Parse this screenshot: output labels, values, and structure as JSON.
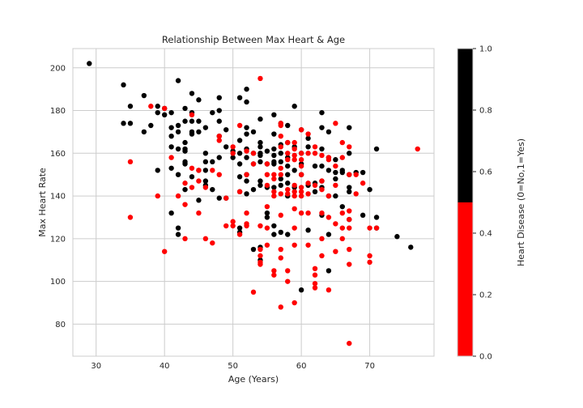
{
  "chart_data": {
    "type": "scatter",
    "title": "Relationship Between Max Heart & Age",
    "xlabel": "Age (Years)",
    "ylabel": "Max Heart Rate",
    "xlim": [
      26.6,
      79.4
    ],
    "ylim": [
      65,
      209
    ],
    "x_ticks": [
      30,
      40,
      50,
      60,
      70
    ],
    "y_ticks": [
      80,
      100,
      120,
      140,
      160,
      180,
      200
    ],
    "grid": true,
    "colorbar": {
      "label": "Heart Disease (0=No,1=Yes)",
      "ticks": [
        "0.0",
        "0.2",
        "0.4",
        "0.6",
        "0.8",
        "1.0"
      ],
      "colors": {
        "0": "#ff0000",
        "1": "#000000"
      }
    },
    "series": [
      {
        "color": "#000000",
        "points": [
          [
            29,
            202
          ],
          [
            34,
            192
          ],
          [
            34,
            174
          ],
          [
            35,
            182
          ],
          [
            35,
            174
          ],
          [
            37,
            187
          ],
          [
            37,
            170
          ],
          [
            38,
            173
          ],
          [
            39,
            182
          ],
          [
            39,
            179
          ],
          [
            39,
            152
          ],
          [
            40,
            178
          ],
          [
            40,
            181
          ],
          [
            41,
            179
          ],
          [
            41,
            172
          ],
          [
            41,
            168
          ],
          [
            41,
            163
          ],
          [
            41,
            153
          ],
          [
            41,
            132
          ],
          [
            42,
            194
          ],
          [
            42,
            173
          ],
          [
            42,
            170
          ],
          [
            42,
            162
          ],
          [
            42,
            150
          ],
          [
            42,
            125
          ],
          [
            42,
            122
          ],
          [
            43,
            181
          ],
          [
            43,
            175
          ],
          [
            43,
            165
          ],
          [
            43,
            162
          ],
          [
            43,
            161
          ],
          [
            43,
            156
          ],
          [
            43,
            155
          ],
          [
            43,
            143
          ],
          [
            44,
            188
          ],
          [
            44,
            179
          ],
          [
            44,
            175
          ],
          [
            44,
            170
          ],
          [
            44,
            169
          ],
          [
            44,
            149
          ],
          [
            45,
            185
          ],
          [
            45,
            175
          ],
          [
            45,
            170
          ],
          [
            45,
            152
          ],
          [
            45,
            138
          ],
          [
            46,
            172
          ],
          [
            46,
            160
          ],
          [
            46,
            156
          ],
          [
            46,
            152
          ],
          [
            46,
            147
          ],
          [
            46,
            145
          ],
          [
            47,
            179
          ],
          [
            47,
            156
          ],
          [
            47,
            143
          ],
          [
            48,
            186
          ],
          [
            48,
            180
          ],
          [
            48,
            175
          ],
          [
            48,
            168
          ],
          [
            48,
            158
          ],
          [
            48,
            139
          ],
          [
            49,
            163
          ],
          [
            49,
            171
          ],
          [
            49,
            139
          ],
          [
            50,
            158
          ],
          [
            50,
            161
          ],
          [
            51,
            186
          ],
          [
            51,
            166
          ],
          [
            51,
            155
          ],
          [
            51,
            149
          ],
          [
            51,
            125
          ],
          [
            51,
            123
          ],
          [
            51,
            160
          ],
          [
            51,
            142
          ],
          [
            52,
            190
          ],
          [
            52,
            184
          ],
          [
            52,
            172
          ],
          [
            52,
            169
          ],
          [
            52,
            162
          ],
          [
            52,
            158
          ],
          [
            52,
            150
          ],
          [
            52,
            147
          ],
          [
            52,
            141
          ],
          [
            53,
            170
          ],
          [
            53,
            160
          ],
          [
            53,
            155
          ],
          [
            53,
            143
          ],
          [
            53,
            115
          ],
          [
            54,
            176
          ],
          [
            54,
            165
          ],
          [
            54,
            163
          ],
          [
            54,
            160
          ],
          [
            54,
            159
          ],
          [
            54,
            156
          ],
          [
            54,
            147
          ],
          [
            54,
            145
          ],
          [
            54,
            116
          ],
          [
            54,
            110
          ],
          [
            55,
            161
          ],
          [
            55,
            155
          ],
          [
            55,
            144
          ],
          [
            55,
            132
          ],
          [
            55,
            130
          ],
          [
            56,
            178
          ],
          [
            56,
            169
          ],
          [
            56,
            162
          ],
          [
            56,
            159
          ],
          [
            56,
            156
          ],
          [
            56,
            155
          ],
          [
            56,
            144
          ],
          [
            56,
            126
          ],
          [
            56,
            122
          ],
          [
            57,
            174
          ],
          [
            57,
            164
          ],
          [
            57,
            160
          ],
          [
            57,
            156
          ],
          [
            57,
            148
          ],
          [
            57,
            145
          ],
          [
            57,
            123
          ],
          [
            58,
            173
          ],
          [
            58,
            165
          ],
          [
            58,
            158
          ],
          [
            58,
            154
          ],
          [
            58,
            150
          ],
          [
            58,
            146
          ],
          [
            58,
            140
          ],
          [
            58,
            122
          ],
          [
            59,
            182
          ],
          [
            59,
            163
          ],
          [
            59,
            152
          ],
          [
            59,
            144
          ],
          [
            60,
            171
          ],
          [
            60,
            160
          ],
          [
            60,
            155
          ],
          [
            60,
            150
          ],
          [
            60,
            96
          ],
          [
            61,
            167
          ],
          [
            61,
            163
          ],
          [
            61,
            145
          ],
          [
            61,
            124
          ],
          [
            62,
            154
          ],
          [
            62,
            146
          ],
          [
            62,
            142
          ],
          [
            63,
            179
          ],
          [
            63,
            172
          ],
          [
            63,
            162
          ],
          [
            63,
            154
          ],
          [
            63,
            147
          ],
          [
            63,
            144
          ],
          [
            63,
            131
          ],
          [
            64,
            170
          ],
          [
            64,
            158
          ],
          [
            64,
            152
          ],
          [
            64,
            140
          ],
          [
            64,
            122
          ],
          [
            64,
            105
          ],
          [
            65,
            157
          ],
          [
            65,
            151
          ],
          [
            65,
            148
          ],
          [
            65,
            140
          ],
          [
            66,
            152
          ],
          [
            66,
            151
          ],
          [
            66,
            135
          ],
          [
            67,
            172
          ],
          [
            67,
            160
          ],
          [
            67,
            150
          ],
          [
            67,
            144
          ],
          [
            67,
            142
          ],
          [
            67,
            129
          ],
          [
            68,
            151
          ],
          [
            69,
            151
          ],
          [
            69,
            131
          ],
          [
            70,
            143
          ],
          [
            71,
            162
          ],
          [
            71,
            130
          ],
          [
            71,
            125
          ],
          [
            74,
            121
          ],
          [
            76,
            116
          ]
        ]
      },
      {
        "color": "#ff0000",
        "points": [
          [
            35,
            156
          ],
          [
            35,
            130
          ],
          [
            38,
            182
          ],
          [
            39,
            140
          ],
          [
            40,
            114
          ],
          [
            40,
            181
          ],
          [
            41,
            158
          ],
          [
            42,
            140
          ],
          [
            43,
            146
          ],
          [
            43,
            136
          ],
          [
            43,
            120
          ],
          [
            44,
            178
          ],
          [
            44,
            153
          ],
          [
            44,
            144
          ],
          [
            45,
            147
          ],
          [
            45,
            132
          ],
          [
            45,
            152
          ],
          [
            46,
            120
          ],
          [
            46,
            144
          ],
          [
            47,
            118
          ],
          [
            47,
            152
          ],
          [
            48,
            150
          ],
          [
            48,
            166
          ],
          [
            48,
            168
          ],
          [
            49,
            139
          ],
          [
            49,
            126
          ],
          [
            50,
            128
          ],
          [
            50,
            126
          ],
          [
            50,
            163
          ],
          [
            50,
            160
          ],
          [
            51,
            173
          ],
          [
            51,
            142
          ],
          [
            51,
            122
          ],
          [
            52,
            161
          ],
          [
            52,
            150
          ],
          [
            52,
            132
          ],
          [
            52,
            127
          ],
          [
            52,
            126
          ],
          [
            53,
            160
          ],
          [
            53,
            95
          ],
          [
            53,
            155
          ],
          [
            54,
            195
          ],
          [
            54,
            126
          ],
          [
            54,
            115
          ],
          [
            54,
            112
          ],
          [
            54,
            109
          ],
          [
            54,
            108
          ],
          [
            55,
            155
          ],
          [
            55,
            150
          ],
          [
            55,
            145
          ],
          [
            55,
            135
          ],
          [
            55,
            125
          ],
          [
            55,
            117
          ],
          [
            56,
            148
          ],
          [
            56,
            150
          ],
          [
            56,
            142
          ],
          [
            56,
            140
          ],
          [
            56,
            105
          ],
          [
            56,
            103
          ],
          [
            57,
            174
          ],
          [
            57,
            173
          ],
          [
            57,
            168
          ],
          [
            57,
            163
          ],
          [
            57,
            153
          ],
          [
            57,
            150
          ],
          [
            57,
            141
          ],
          [
            57,
            131
          ],
          [
            57,
            115
          ],
          [
            57,
            111
          ],
          [
            57,
            88
          ],
          [
            58,
            165
          ],
          [
            58,
            160
          ],
          [
            58,
            157
          ],
          [
            58,
            143
          ],
          [
            58,
            141
          ],
          [
            58,
            105
          ],
          [
            58,
            100
          ],
          [
            59,
            165
          ],
          [
            59,
            162
          ],
          [
            59,
            159
          ],
          [
            59,
            157
          ],
          [
            59,
            145
          ],
          [
            59,
            142
          ],
          [
            59,
            140
          ],
          [
            59,
            134
          ],
          [
            59,
            125
          ],
          [
            59,
            117
          ],
          [
            59,
            90
          ],
          [
            60,
            171
          ],
          [
            60,
            160
          ],
          [
            60,
            157
          ],
          [
            60,
            154
          ],
          [
            60,
            144
          ],
          [
            60,
            142
          ],
          [
            60,
            140
          ],
          [
            60,
            132
          ],
          [
            60,
            150
          ],
          [
            61,
            169
          ],
          [
            61,
            160
          ],
          [
            61,
            146
          ],
          [
            61,
            141
          ],
          [
            61,
            132
          ],
          [
            61,
            117
          ],
          [
            62,
            163
          ],
          [
            62,
            160
          ],
          [
            62,
            145
          ],
          [
            62,
            106
          ],
          [
            62,
            103
          ],
          [
            62,
            99
          ],
          [
            62,
            97
          ],
          [
            63,
            159
          ],
          [
            63,
            147
          ],
          [
            63,
            143
          ],
          [
            63,
            132
          ],
          [
            63,
            120
          ],
          [
            63,
            112
          ],
          [
            64,
            158
          ],
          [
            64,
            157
          ],
          [
            64,
            140
          ],
          [
            64,
            130
          ],
          [
            64,
            96
          ],
          [
            65,
            174
          ],
          [
            65,
            154
          ],
          [
            65,
            145
          ],
          [
            65,
            127
          ],
          [
            65,
            114
          ],
          [
            66,
            165
          ],
          [
            66,
            158
          ],
          [
            66,
            132
          ],
          [
            66,
            125
          ],
          [
            66,
            120
          ],
          [
            67,
            163
          ],
          [
            67,
            150
          ],
          [
            67,
            133
          ],
          [
            67,
            129
          ],
          [
            67,
            125
          ],
          [
            67,
            115
          ],
          [
            67,
            108
          ],
          [
            67,
            71
          ],
          [
            68,
            150
          ],
          [
            68,
            141
          ],
          [
            69,
            146
          ],
          [
            70,
            125
          ],
          [
            70,
            112
          ],
          [
            70,
            109
          ],
          [
            71,
            125
          ],
          [
            77,
            162
          ]
        ]
      }
    ]
  }
}
